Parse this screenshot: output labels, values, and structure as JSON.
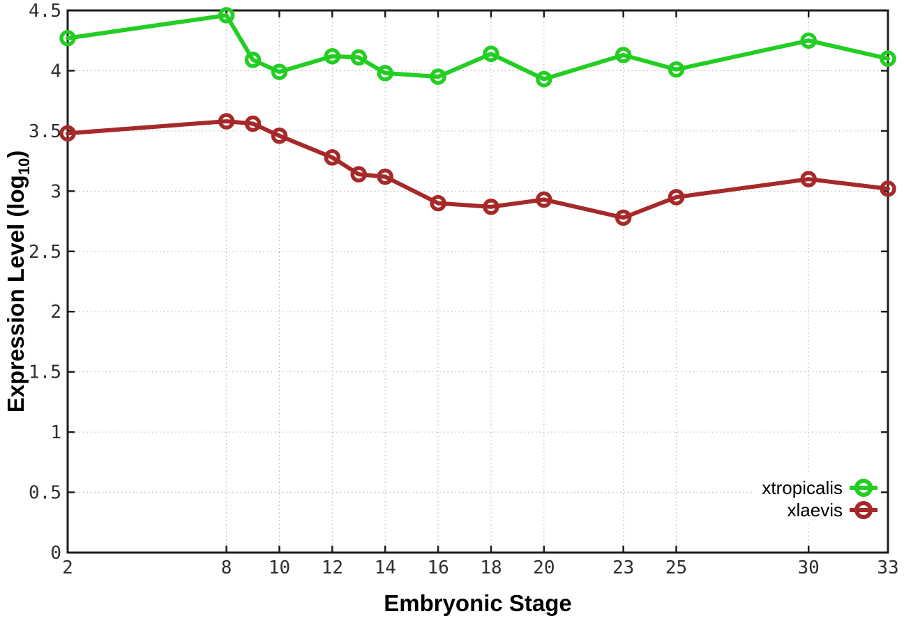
{
  "chart_data": {
    "type": "line",
    "title": "",
    "xlabel": "Embryonic Stage",
    "ylabel": {
      "pre": "Expression Level (log",
      "sub": "10",
      "post": ")"
    },
    "x": [
      2,
      8,
      9,
      10,
      12,
      13,
      14,
      16,
      18,
      20,
      23,
      25,
      30,
      33
    ],
    "xticks": [
      2,
      8,
      10,
      12,
      14,
      16,
      18,
      20,
      23,
      25,
      30,
      33
    ],
    "yticks": [
      0,
      0.5,
      1,
      1.5,
      2,
      2.5,
      3,
      3.5,
      4,
      4.5
    ],
    "xlim": [
      2,
      33
    ],
    "ylim": [
      0,
      4.5
    ],
    "grid": true,
    "grid_style": "dotted",
    "legend_position": "inside-bottom-right",
    "background": "#ffffff",
    "border_color": "#1c1c1c",
    "grid_color": "#b0b0b0",
    "tick_label_color": "#2e2e2e",
    "series": [
      {
        "name": "xtropicalis",
        "color": "#23CE23",
        "marker": "open-circle",
        "values": [
          4.27,
          4.46,
          4.09,
          3.99,
          4.12,
          4.11,
          3.98,
          3.95,
          4.14,
          3.93,
          4.13,
          4.01,
          4.25,
          4.1
        ]
      },
      {
        "name": "xlaevis",
        "color": "#A62929",
        "marker": "open-circle",
        "values": [
          3.48,
          3.58,
          3.56,
          3.46,
          3.28,
          3.14,
          3.12,
          2.9,
          2.87,
          2.93,
          2.78,
          2.95,
          3.1,
          3.02
        ]
      }
    ]
  }
}
